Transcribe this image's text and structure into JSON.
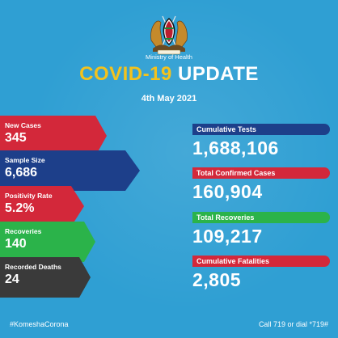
{
  "header": {
    "ministry": "Ministry of Health",
    "title_part1": "COVID-19",
    "title_part2": "UPDATE",
    "date": "4th May 2021"
  },
  "daily": [
    {
      "label": "New Cases",
      "value": "345",
      "color": "#d3283a"
    },
    {
      "label": "Sample Size",
      "value": "6,686",
      "color": "#1d3f8a"
    },
    {
      "label": "Positivity Rate",
      "value": "5.2%",
      "color": "#d3283a"
    },
    {
      "label": "Recoveries",
      "value": "140",
      "color": "#2bb34a"
    },
    {
      "label": "Recorded Deaths",
      "value": "24",
      "color": "#3a3a3a"
    }
  ],
  "cumulative": [
    {
      "label": "Cumulative Tests",
      "value": "1,688,106",
      "color": "#1d3f8a"
    },
    {
      "label": "Total Confirmed Cases",
      "value": "160,904",
      "color": "#d3283a"
    },
    {
      "label": "Total Recoveries",
      "value": "109,217",
      "color": "#2bb34a"
    },
    {
      "label": "Cumulative Fatalities",
      "value": "2,805",
      "color": "#d3283a"
    }
  ],
  "footer": {
    "hashtag": "#KomeshaCorona",
    "hotline": "Call 719 or dial *719#"
  },
  "logo_icon": "kenya-coat-of-arms-icon"
}
